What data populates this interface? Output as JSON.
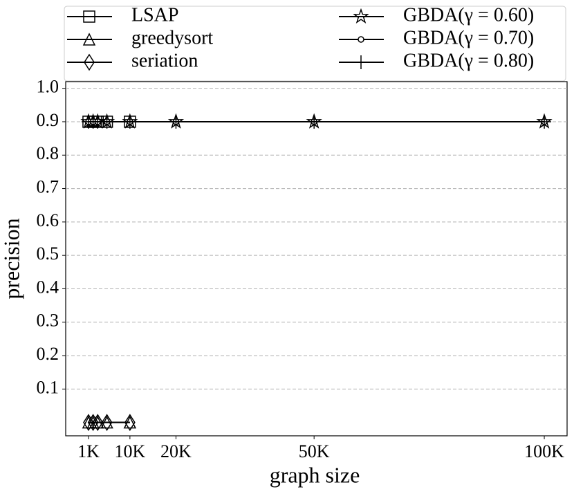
{
  "chart_data": {
    "type": "line",
    "x_label": "graph size",
    "y_label": "precision",
    "xlim": [
      -3950,
      104950
    ],
    "ylim": [
      -0.04,
      1.02
    ],
    "xticks": [
      {
        "value": 1000,
        "label": "1K"
      },
      {
        "value": 10000,
        "label": "10K"
      },
      {
        "value": 20000,
        "label": "20K"
      },
      {
        "value": 50000,
        "label": "50K"
      },
      {
        "value": 100000,
        "label": "100K"
      }
    ],
    "yticks": [
      0.1,
      0.2,
      0.3,
      0.4,
      0.5,
      0.6,
      0.7,
      0.8,
      0.9,
      {
        "value": 1,
        "label": "1.0"
      }
    ],
    "grid": true,
    "legend": "top",
    "series": [
      {
        "name": "LSAP",
        "color": "#000000",
        "marker": "square",
        "x": [
          1000,
          2000,
          3000,
          5000,
          10000
        ],
        "values": [
          0.9,
          0.9,
          0.9,
          0.9,
          0.9
        ]
      },
      {
        "name": "greedysort",
        "color": "#000000",
        "marker": "triangle",
        "x": [
          1000,
          2000,
          3000,
          5000,
          10000
        ],
        "values": [
          0,
          0,
          0,
          0,
          0
        ]
      },
      {
        "name": "seriation",
        "color": "#000000",
        "marker": "diamond",
        "x": [
          1000,
          2000,
          3000,
          5000,
          10000
        ],
        "values": [
          0,
          0,
          0,
          0,
          0
        ]
      },
      {
        "name": "GBDA(γ = 0.60)",
        "color": "#000000",
        "marker": "star",
        "x": [
          1000,
          2000,
          3000,
          5000,
          10000,
          20000,
          50000,
          100000
        ],
        "values": [
          0.9,
          0.9,
          0.9,
          0.9,
          0.9,
          0.9,
          0.9,
          0.9
        ]
      },
      {
        "name": "GBDA(γ = 0.70)",
        "color": "#000000",
        "marker": "circle",
        "x": [
          1000,
          2000,
          3000,
          5000,
          10000,
          20000,
          50000,
          100000
        ],
        "values": [
          0.9,
          0.9,
          0.9,
          0.9,
          0.9,
          0.9,
          0.9,
          0.9
        ]
      },
      {
        "name": "GBDA(γ = 0.80)",
        "color": "#000000",
        "marker": "plus",
        "x": [
          1000,
          2000,
          3000,
          5000,
          10000,
          20000,
          50000,
          100000
        ],
        "values": [
          0.9,
          0.9,
          0.9,
          0.9,
          0.9,
          0.9,
          0.9,
          0.9
        ]
      }
    ]
  }
}
